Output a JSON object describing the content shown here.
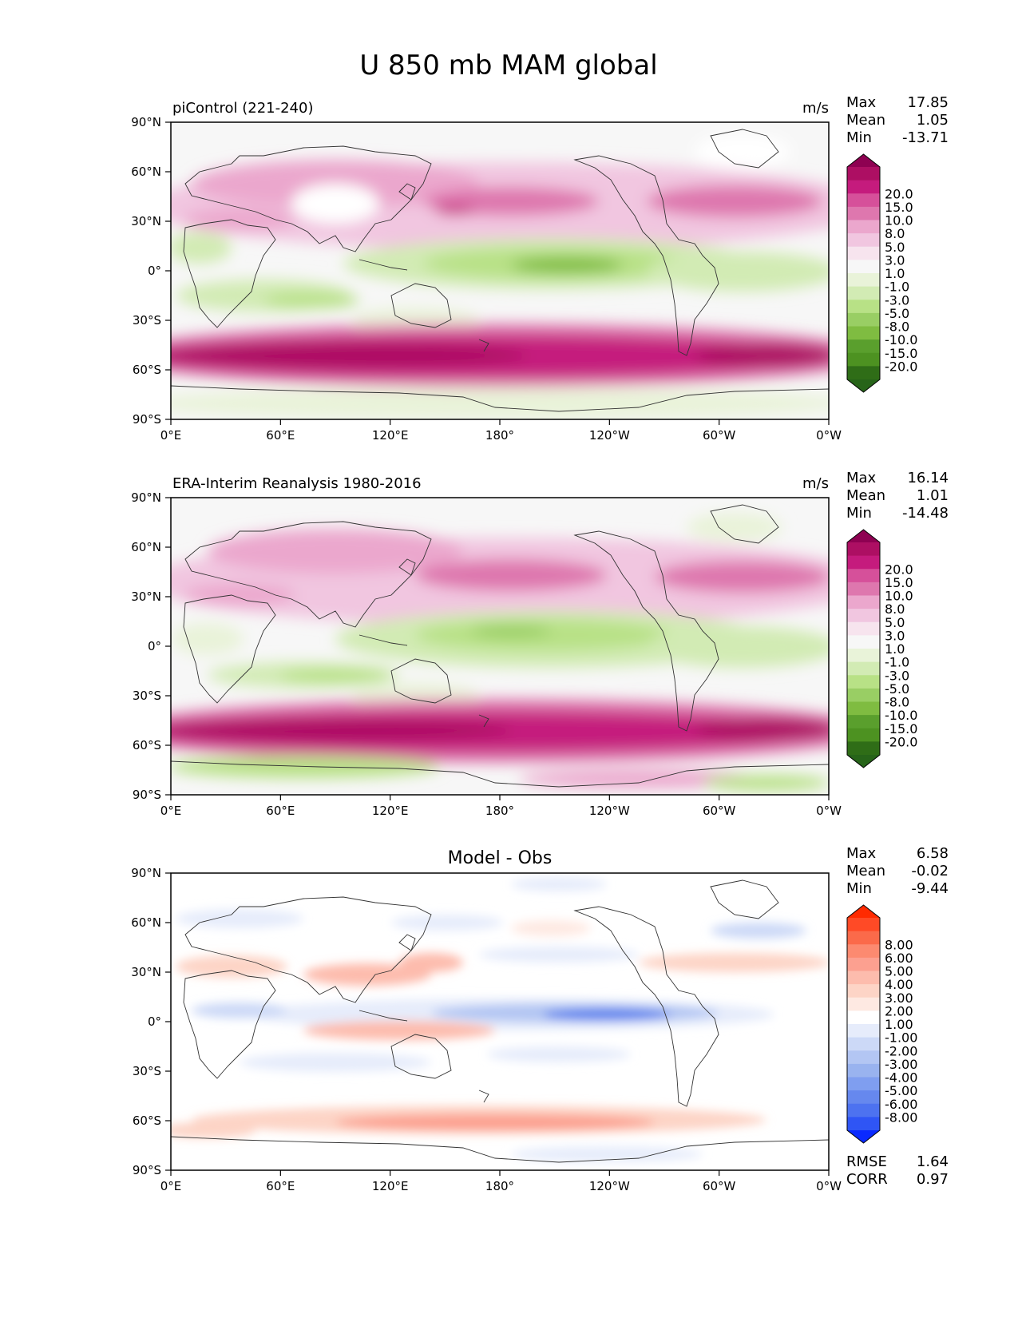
{
  "figure": {
    "title": "U 850 mb MAM global"
  },
  "chart_data": [
    {
      "type": "heatmap",
      "panel_title_left": "piControl (221-240)",
      "panel_title_center": "",
      "units": "m/s",
      "stats": [
        {
          "label": "Max",
          "value": "17.85"
        },
        {
          "label": "Mean",
          "value": "1.05"
        },
        {
          "label": "Min",
          "value": "-13.71"
        }
      ],
      "extra_stats": [],
      "x_ticks": [
        "0°E",
        "60°E",
        "120°E",
        "180°",
        "120°W",
        "60°W",
        "0°W"
      ],
      "y_ticks": [
        "90°N",
        "60°N",
        "30°N",
        "0°",
        "30°S",
        "60°S",
        "90°S"
      ],
      "colorbar": {
        "extend": "both",
        "labels": [
          "20.0",
          "15.0",
          "10.0",
          "8.0",
          "5.0",
          "3.0",
          "1.0",
          "-1.0",
          "-3.0",
          "-5.0",
          "-8.0",
          "-10.0",
          "-15.0",
          "-20.0"
        ],
        "colors": [
          "#8e0152",
          "#ad0f63",
          "#c51b7d",
          "#d6509a",
          "#de77ae",
          "#eba7cd",
          "#f1c6e0",
          "#f7e4ee",
          "#f7f7f7",
          "#e9f3d9",
          "#d2ebb4",
          "#b8e186",
          "#99ce64",
          "#7fbc41",
          "#5a9f2d",
          "#4d9221",
          "#2f6d17",
          "#276419"
        ]
      }
    },
    {
      "type": "heatmap",
      "panel_title_left": "ERA-Interim Reanalysis 1980-2016",
      "panel_title_center": "",
      "units": "m/s",
      "stats": [
        {
          "label": "Max",
          "value": "16.14"
        },
        {
          "label": "Mean",
          "value": "1.01"
        },
        {
          "label": "Min",
          "value": "-14.48"
        }
      ],
      "extra_stats": [],
      "x_ticks": [
        "0°E",
        "60°E",
        "120°E",
        "180°",
        "120°W",
        "60°W",
        "0°W"
      ],
      "y_ticks": [
        "90°N",
        "60°N",
        "30°N",
        "0°",
        "30°S",
        "60°S",
        "90°S"
      ],
      "colorbar": {
        "extend": "both",
        "labels": [
          "20.0",
          "15.0",
          "10.0",
          "8.0",
          "5.0",
          "3.0",
          "1.0",
          "-1.0",
          "-3.0",
          "-5.0",
          "-8.0",
          "-10.0",
          "-15.0",
          "-20.0"
        ],
        "colors": [
          "#8e0152",
          "#ad0f63",
          "#c51b7d",
          "#d6509a",
          "#de77ae",
          "#eba7cd",
          "#f1c6e0",
          "#f7e4ee",
          "#f7f7f7",
          "#e9f3d9",
          "#d2ebb4",
          "#b8e186",
          "#99ce64",
          "#7fbc41",
          "#5a9f2d",
          "#4d9221",
          "#2f6d17",
          "#276419"
        ]
      }
    },
    {
      "type": "heatmap",
      "panel_title_left": "",
      "panel_title_center": "Model - Obs",
      "units": "",
      "stats": [
        {
          "label": "Max",
          "value": "6.58"
        },
        {
          "label": "Mean",
          "value": "-0.02"
        },
        {
          "label": "Min",
          "value": "-9.44"
        }
      ],
      "extra_stats": [
        {
          "label": "RMSE",
          "value": "1.64"
        },
        {
          "label": "CORR",
          "value": "0.97"
        }
      ],
      "x_ticks": [
        "0°E",
        "60°E",
        "120°E",
        "180°",
        "120°W",
        "60°W",
        "0°W"
      ],
      "y_ticks": [
        "90°N",
        "60°N",
        "30°N",
        "0°",
        "30°S",
        "60°S",
        "90°S"
      ],
      "colorbar": {
        "extend": "both",
        "labels": [
          "8.00",
          "6.00",
          "5.00",
          "4.00",
          "3.00",
          "2.00",
          "1.00",
          "-1.00",
          "-2.00",
          "-3.00",
          "-4.00",
          "-5.00",
          "-6.00",
          "-8.00"
        ],
        "colors": [
          "#ff2a00",
          "#ff4a26",
          "#fb6a4a",
          "#fc8a70",
          "#fca090",
          "#fdbcad",
          "#fdd4c6",
          "#fee9e2",
          "#ffffff",
          "#e6ecfb",
          "#ccd9f7",
          "#b3c6f3",
          "#99b3ef",
          "#7f9ef0",
          "#6688ee",
          "#4d72f0",
          "#2f55f5",
          "#0a2aff"
        ]
      }
    }
  ]
}
